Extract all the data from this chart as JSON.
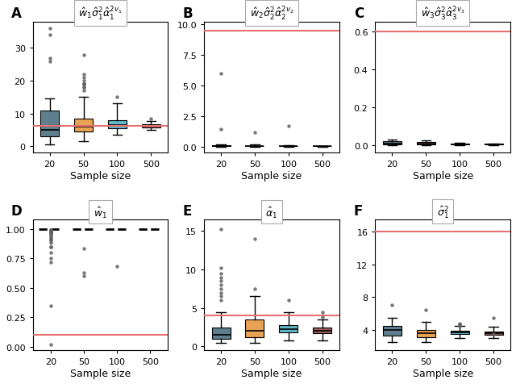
{
  "sample_sizes": [
    20,
    50,
    100,
    500
  ],
  "colors": [
    "#5f7f8f",
    "#e8a254",
    "#5fb8c8",
    "#9e5a5a"
  ],
  "red_line_color": "#e87070",
  "panel_labels": [
    "A",
    "B",
    "C",
    "D",
    "E",
    "F"
  ],
  "titles_raw": [
    "$\\hat{w}_1\\hat{\\sigma}_1^2\\hat{\\alpha}_1^{2v_1}$",
    "$\\hat{w}_2\\hat{\\sigma}_2^2\\hat{\\alpha}_2^{2v_2}$",
    "$\\hat{w}_3\\hat{\\sigma}_3^2\\hat{\\alpha}_3^{2v_3}$",
    "$\\hat{w}_1$",
    "$\\hat{\\alpha}_1$",
    "$\\hat{\\sigma}_1^2$"
  ],
  "red_lines": [
    6.3,
    9.5,
    0.6,
    0.1,
    4.0,
    16.0
  ],
  "xlabel": "Sample size",
  "figsize": [
    6.4,
    4.77
  ],
  "dpi": 100,
  "panels": {
    "A": {
      "medians": [
        5.0,
        6.0,
        6.5,
        6.3
      ],
      "q1": [
        3.0,
        4.5,
        5.5,
        5.8
      ],
      "q3": [
        11.0,
        8.5,
        8.0,
        6.8
      ],
      "whislo": [
        0.5,
        1.5,
        3.5,
        5.0
      ],
      "whishi": [
        14.5,
        15.0,
        13.0,
        7.8
      ],
      "fliers": [
        [
          36,
          34,
          27,
          26
        ],
        [
          28,
          22,
          21,
          20,
          19,
          19,
          19,
          18,
          18,
          17
        ],
        [
          15
        ],
        [
          8.5
        ]
      ],
      "fliers_lo": [
        [],
        [],
        [],
        []
      ],
      "ylim": [
        -2,
        38
      ],
      "yticks": [
        0,
        10,
        20,
        30
      ],
      "colored_boxes": true
    },
    "B": {
      "medians": [
        0.05,
        0.05,
        0.05,
        0.04
      ],
      "q1": [
        0.02,
        0.02,
        0.02,
        0.02
      ],
      "q3": [
        0.1,
        0.08,
        0.06,
        0.05
      ],
      "whislo": [
        0.0,
        0.0,
        0.0,
        0.0
      ],
      "whishi": [
        0.18,
        0.15,
        0.1,
        0.06
      ],
      "fliers": [
        [
          6.0,
          1.4
        ],
        [
          1.2
        ],
        [
          1.7
        ],
        []
      ],
      "fliers_lo": [
        [],
        [],
        [],
        []
      ],
      "ylim": [
        -0.5,
        10.2
      ],
      "yticks": [
        0.0,
        2.5,
        5.0,
        7.5,
        10.0
      ],
      "colored_boxes": true
    },
    "C": {
      "medians": [
        0.01,
        0.01,
        0.005,
        0.005
      ],
      "q1": [
        0.005,
        0.005,
        0.003,
        0.003
      ],
      "q3": [
        0.02,
        0.015,
        0.008,
        0.007
      ],
      "whislo": [
        0.0,
        0.0,
        0.0,
        0.0
      ],
      "whishi": [
        0.03,
        0.025,
        0.012,
        0.01
      ],
      "fliers": [
        [],
        [],
        [],
        []
      ],
      "fliers_lo": [
        [],
        [],
        [],
        []
      ],
      "ylim": [
        -0.04,
        0.65
      ],
      "yticks": [
        0.0,
        0.2,
        0.4,
        0.6
      ],
      "colored_boxes": true
    },
    "D": {
      "medians": [
        1.0,
        1.0,
        1.0,
        1.0
      ],
      "q1": [
        1.0,
        1.0,
        1.0,
        1.0
      ],
      "q3": [
        1.0,
        1.0,
        1.0,
        1.0
      ],
      "whislo": [
        1.0,
        1.0,
        1.0,
        1.0
      ],
      "whishi": [
        1.0,
        1.0,
        1.0,
        1.0
      ],
      "fliers": [
        [],
        [],
        [],
        []
      ],
      "fliers_lo": [
        [
          0.02,
          0.35,
          0.8,
          0.75,
          0.72,
          0.85,
          0.85,
          0.88,
          0.9,
          0.91,
          0.92,
          0.93,
          0.95,
          0.95,
          0.96,
          0.97,
          0.97,
          0.98,
          0.98,
          0.99,
          0.99,
          0.99
        ],
        [
          0.83,
          0.63,
          0.6
        ],
        [
          0.68
        ],
        []
      ],
      "ylim": [
        -0.03,
        1.08
      ],
      "yticks": [
        0.0,
        0.25,
        0.5,
        0.75,
        1.0
      ],
      "colored_boxes": false
    },
    "E": {
      "medians": [
        1.5,
        2.0,
        2.2,
        2.0
      ],
      "q1": [
        1.0,
        1.2,
        1.8,
        1.7
      ],
      "q3": [
        2.5,
        3.5,
        2.8,
        2.5
      ],
      "whislo": [
        0.5,
        0.5,
        0.8,
        0.8
      ],
      "whishi": [
        4.5,
        6.5,
        4.5,
        3.5
      ],
      "fliers": [
        [
          15.2,
          10.2,
          9.5,
          9.0,
          8.5,
          8.0,
          7.5,
          7.0,
          6.5,
          6.0
        ],
        [
          14.0,
          7.5
        ],
        [
          6.0
        ],
        [
          4.5,
          3.8
        ]
      ],
      "fliers_lo": [
        [],
        [],
        [],
        []
      ],
      "ylim": [
        -0.5,
        16.5
      ],
      "yticks": [
        0,
        5,
        10,
        15
      ],
      "colored_boxes": true
    },
    "F": {
      "medians": [
        4.0,
        3.6,
        3.7,
        3.6
      ],
      "q1": [
        3.3,
        3.1,
        3.5,
        3.4
      ],
      "q3": [
        4.5,
        4.0,
        3.9,
        3.8
      ],
      "whislo": [
        2.5,
        2.5,
        3.0,
        3.0
      ],
      "whishi": [
        5.5,
        5.0,
        4.5,
        4.4
      ],
      "fliers": [
        [
          7.0
        ],
        [
          6.5
        ],
        [
          4.8,
          4.7,
          4.6,
          4.5
        ],
        [
          5.5,
          3.5
        ]
      ],
      "fliers_lo": [
        [],
        [],
        [],
        []
      ],
      "ylim": [
        1.5,
        17.5
      ],
      "yticks": [
        4,
        8,
        12,
        16
      ],
      "colored_boxes": true
    }
  }
}
